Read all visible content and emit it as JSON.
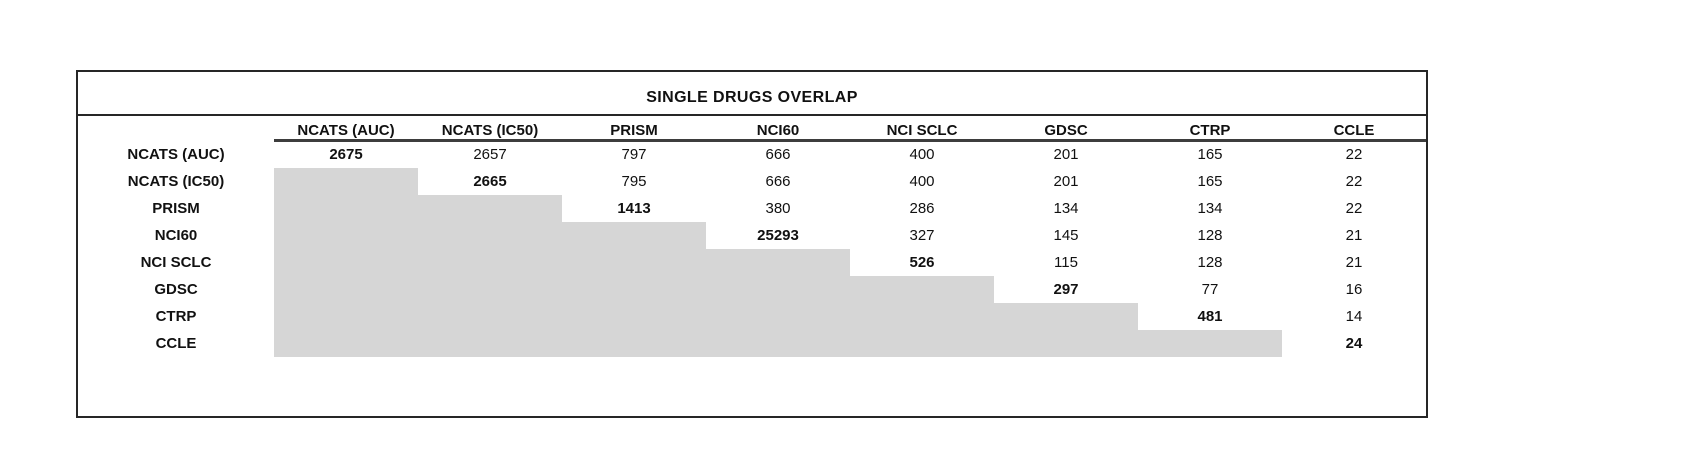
{
  "title": "SINGLE DRUGS OVERLAP",
  "colors": {
    "shade_fill": "#d6d6d6",
    "border": "#262626",
    "header_rule": "#3d3d3d",
    "text": "#111111",
    "background": "#ffffff"
  },
  "chart_data": {
    "type": "table",
    "title": "SINGLE DRUGS OVERLAP",
    "description": "Pairwise overlap matrix of single drugs across screening datasets; diagonal (bold) is the dataset's own drug count; lower triangle is shaded gray with no values.",
    "columns": [
      "NCATS (AUC)",
      "NCATS (IC50)",
      "PRISM",
      "NCI60",
      "NCI SCLC",
      "GDSC",
      "CTRP",
      "CCLE"
    ],
    "rows": [
      "NCATS (AUC)",
      "NCATS (IC50)",
      "PRISM",
      "NCI60",
      "NCI SCLC",
      "GDSC",
      "CTRP",
      "CCLE"
    ],
    "matrix": [
      [
        2675,
        2657,
        797,
        666,
        400,
        201,
        165,
        22
      ],
      [
        null,
        2665,
        795,
        666,
        400,
        201,
        165,
        22
      ],
      [
        null,
        null,
        1413,
        380,
        286,
        134,
        134,
        22
      ],
      [
        null,
        null,
        null,
        25293,
        327,
        145,
        128,
        21
      ],
      [
        null,
        null,
        null,
        null,
        526,
        115,
        128,
        21
      ],
      [
        null,
        null,
        null,
        null,
        null,
        297,
        77,
        16
      ],
      [
        null,
        null,
        null,
        null,
        null,
        null,
        481,
        14
      ],
      [
        null,
        null,
        null,
        null,
        null,
        null,
        null,
        24
      ]
    ],
    "diagonal_bold": true,
    "lower_triangle": "shaded",
    "grid": false,
    "legend": "none"
  }
}
